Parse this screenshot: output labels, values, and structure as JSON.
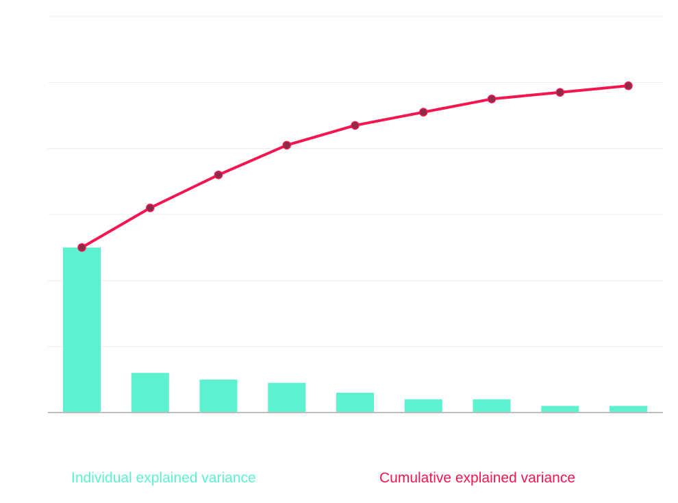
{
  "colors": {
    "individual": "#5EF1CF",
    "cumulative": "#F5154F",
    "marker_fill": "#8A2D48",
    "grid": "#ECECEC",
    "baseline": "#BDBDBD",
    "background": "#FFFFFF"
  },
  "chart_data": {
    "type": "bar",
    "x": [
      1,
      2,
      3,
      4,
      5,
      6,
      7,
      8,
      9
    ],
    "ylim": [
      0,
      1.2
    ],
    "grid": true,
    "legend_position": "bottom",
    "series": [
      {
        "name": "Individual explained variance",
        "type": "bar",
        "values": [
          0.5,
          0.12,
          0.1,
          0.09,
          0.06,
          0.04,
          0.04,
          0.02,
          0.02
        ]
      },
      {
        "name": "Cumulative explained variance",
        "type": "line",
        "values": [
          0.5,
          0.62,
          0.72,
          0.81,
          0.87,
          0.91,
          0.95,
          0.97,
          0.99
        ]
      }
    ]
  }
}
